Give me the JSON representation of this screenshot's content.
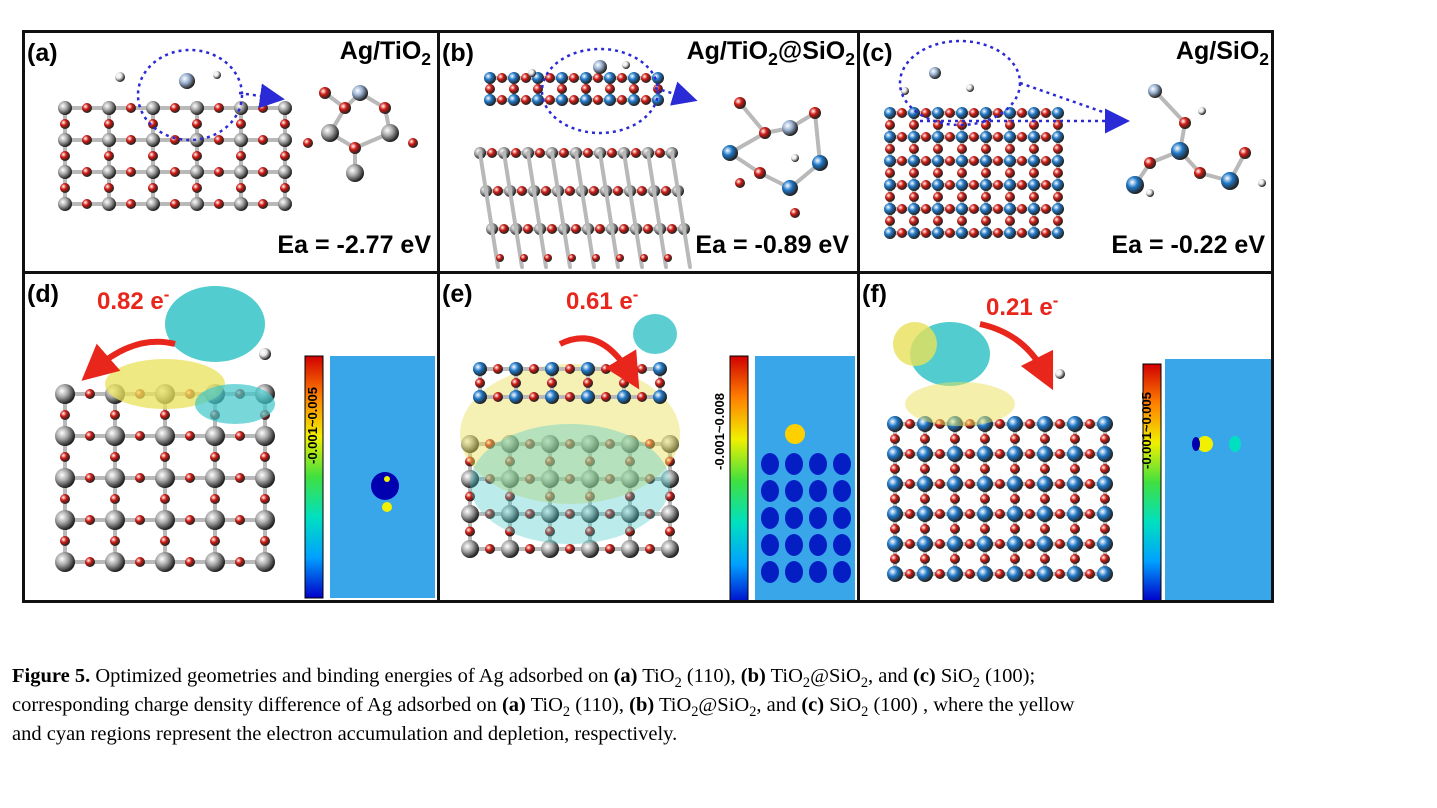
{
  "panels_top": [
    {
      "label": "(a)",
      "title_main": "Ag/TiO",
      "title_sub": "2",
      "title_rest": "",
      "energy": "Ea = -2.77 eV"
    },
    {
      "label": "(b)",
      "title_main": "Ag/TiO",
      "title_sub": "2",
      "title_rest": "@SiO",
      "title_sub2": "2",
      "energy": "Ea = -0.89 eV"
    },
    {
      "label": "(c)",
      "title_main": "Ag/SiO",
      "title_sub": "2",
      "title_rest": "",
      "energy": "Ea = -0.22 eV"
    }
  ],
  "panels_bottom": [
    {
      "label": "(d)",
      "charge": "0.82 e",
      "charge_sup": "-",
      "cbar": "-0.001~0.005"
    },
    {
      "label": "(e)",
      "charge": "0.61 e",
      "charge_sup": "-",
      "cbar": "-0.001~0.008"
    },
    {
      "label": "(f)",
      "charge": "0.21 e",
      "charge_sup": "-",
      "cbar": "-0.001~0.005"
    }
  ],
  "colors": {
    "oxygen": "#d11a12",
    "titanium": "#a9a9a9",
    "silicon": "#1f78c8",
    "silver": "#9bb3d4",
    "hydrogen": "#e8e8e8",
    "charge_arrow": "#e8261b",
    "dotted_arrow": "#2a2ad6",
    "map_background": "#3aa6ea"
  },
  "caption": {
    "fig_label": "Figure 5.",
    "part1": " Optimized geometries and binding energies of Ag adsorbed on ",
    "a": "(a)",
    "tio2": " TiO",
    "sub2": "2",
    "t110": " (110), ",
    "b": "(b)",
    "tio2sio2_a": " TiO",
    "tio2sio2_b": "@SiO",
    "and": ", and ",
    "c": "(c)",
    "sio2": " SiO",
    "t100": " (100);",
    "part2": "corresponding charge density difference of Ag adsorbed on ",
    "t100b": " (100) , where the yellow",
    "part3": "and cyan regions represent the electron accumulation and depletion, respectively."
  }
}
